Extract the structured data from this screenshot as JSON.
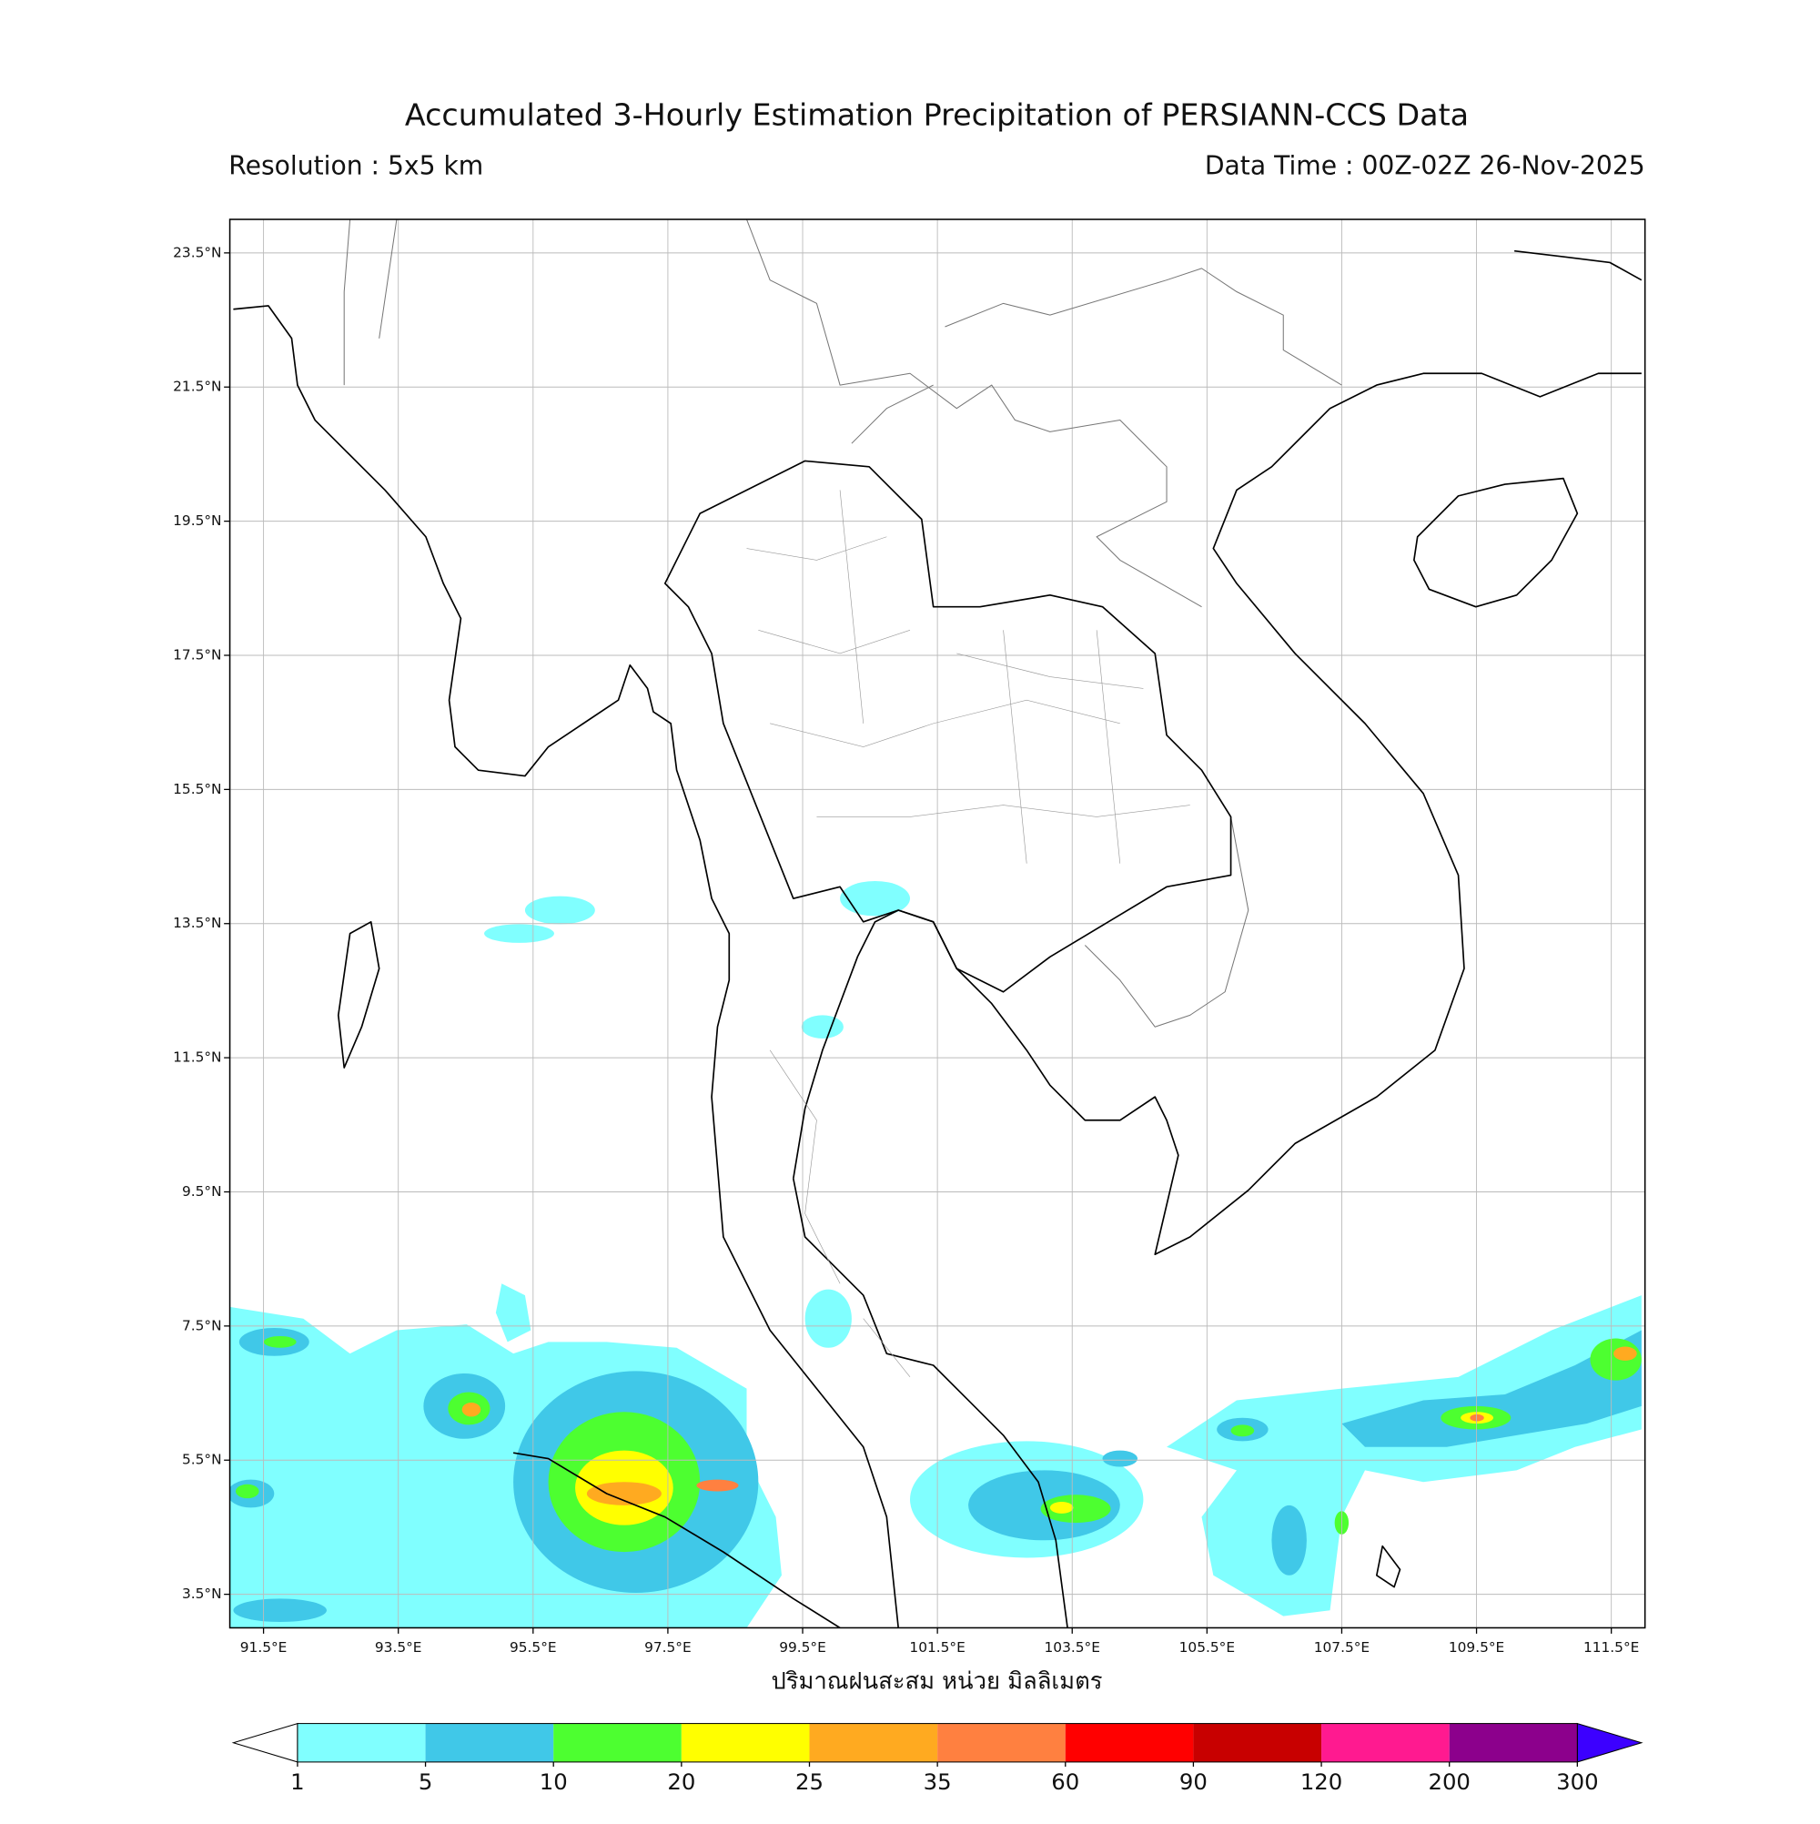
{
  "title": "Accumulated 3-Hourly Estimation Precipitation of PERSIANN-CCS Data",
  "resolution": "Resolution : 5x5 km",
  "data_time": "Data Time : 00Z-02Z 26-Nov-2025",
  "map": {
    "xlim": [
      91,
      112
    ],
    "ylim": [
      3,
      24
    ],
    "grid": true,
    "xticks": [
      {
        "value": 91.5,
        "label": "91.5°E"
      },
      {
        "value": 93.5,
        "label": "93.5°E"
      },
      {
        "value": 95.5,
        "label": "95.5°E"
      },
      {
        "value": 97.5,
        "label": "97.5°E"
      },
      {
        "value": 99.5,
        "label": "99.5°E"
      },
      {
        "value": 101.5,
        "label": "101.5°E"
      },
      {
        "value": 103.5,
        "label": "103.5°E"
      },
      {
        "value": 105.5,
        "label": "105.5°E"
      },
      {
        "value": 107.5,
        "label": "107.5°E"
      },
      {
        "value": 109.5,
        "label": "109.5°E"
      },
      {
        "value": 111.5,
        "label": "111.5°E"
      }
    ],
    "yticks": [
      {
        "value": 3.5,
        "label": "3.5°N"
      },
      {
        "value": 5.5,
        "label": "5.5°N"
      },
      {
        "value": 7.5,
        "label": "7.5°N"
      },
      {
        "value": 9.5,
        "label": "9.5°N"
      },
      {
        "value": 11.5,
        "label": "11.5°N"
      },
      {
        "value": 13.5,
        "label": "13.5°N"
      },
      {
        "value": 15.5,
        "label": "15.5°N"
      },
      {
        "value": 17.5,
        "label": "17.5°N"
      },
      {
        "value": 19.5,
        "label": "19.5°N"
      },
      {
        "value": 21.5,
        "label": "21.5°N"
      },
      {
        "value": 23.5,
        "label": "23.5°N"
      }
    ],
    "xlabel": "ปริมาณฝนสะสม หน่วย มิลลิเมตร"
  },
  "colorbar": {
    "levels": [
      1,
      5,
      10,
      20,
      25,
      35,
      60,
      90,
      120,
      200,
      300
    ],
    "colors": [
      "#80ffff",
      "#40c8e8",
      "#4dff30",
      "#ffff00",
      "#ffaa20",
      "#ff8040",
      "#ff0000",
      "#c80000",
      "#ff1a90",
      "#8c008c"
    ],
    "under_color": "#ffffff",
    "over_color": "#3c00ff"
  }
}
